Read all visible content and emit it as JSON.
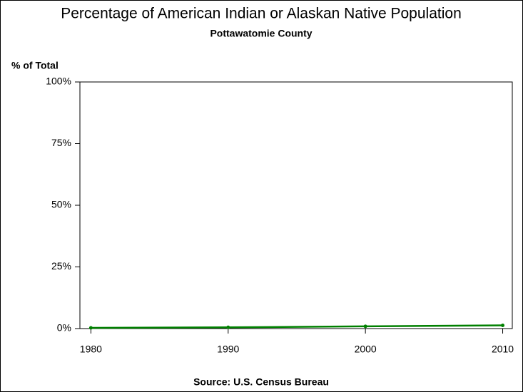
{
  "chart_data": {
    "type": "line",
    "title": "Percentage of American Indian or Alaskan Native Population",
    "subtitle": "Pottawatomie County",
    "y_label": "% of Total",
    "source": "Source: U.S. Census Bureau",
    "x": [
      1980,
      1990,
      2000,
      2010
    ],
    "series": [
      {
        "color": "#008000",
        "values": [
          0.3,
          0.5,
          0.9,
          1.3
        ]
      }
    ],
    "xlim": [
      1979.2,
      2010.7
    ],
    "xticks": [
      1980,
      1990,
      2000,
      2010
    ],
    "ylim": [
      0,
      100
    ],
    "yticks": [
      {
        "value": 0,
        "label": "0%"
      },
      {
        "value": 25,
        "label": "25%"
      },
      {
        "value": 50,
        "label": "50%"
      },
      {
        "value": 75,
        "label": "75%"
      },
      {
        "value": 100,
        "label": "100%"
      }
    ]
  }
}
